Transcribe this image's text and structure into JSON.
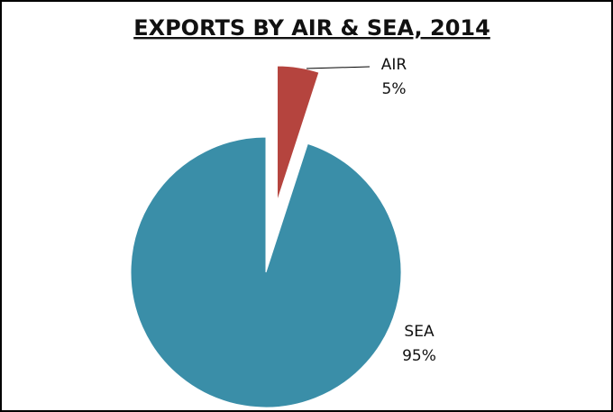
{
  "chart_data": {
    "type": "pie",
    "title": "EXPORTS BY AIR & SEA, 2014",
    "categories": [
      "AIR",
      "SEA"
    ],
    "values": [
      5,
      95
    ],
    "value_labels": [
      "5%",
      "95%"
    ],
    "colors": [
      "#b5443e",
      "#3a8ea8"
    ]
  }
}
